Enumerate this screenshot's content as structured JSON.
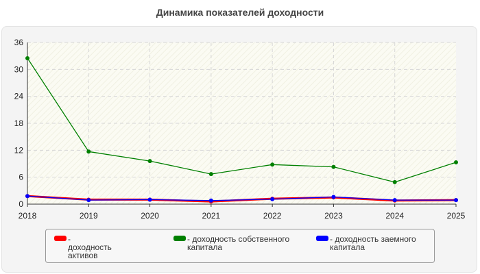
{
  "chart_data": {
    "type": "line",
    "title": "Динамика показателей доходности",
    "x": [
      "2018",
      "2019",
      "2020",
      "2021",
      "2022",
      "2023",
      "2024",
      "2025"
    ],
    "ylim": [
      0,
      36
    ],
    "yticks": [
      0,
      6,
      12,
      18,
      24,
      30,
      36
    ],
    "grid": true,
    "legend_position": "bottom",
    "series": [
      {
        "name": "- доходность активов",
        "color": "#ff0000",
        "values": [
          1.8,
          1.0,
          1.0,
          0.6,
          1.2,
          1.5,
          0.8,
          0.9
        ]
      },
      {
        "name": "- доходность собственного капитала",
        "color": "#008000",
        "values": [
          32.5,
          11.7,
          9.6,
          6.7,
          8.8,
          8.3,
          4.9,
          9.3
        ]
      },
      {
        "name": "- доходность заемного капитала",
        "color": "#0000ff",
        "values": [
          1.8,
          0.9,
          1.0,
          0.8,
          1.1,
          1.6,
          0.9,
          0.9
        ]
      }
    ]
  }
}
